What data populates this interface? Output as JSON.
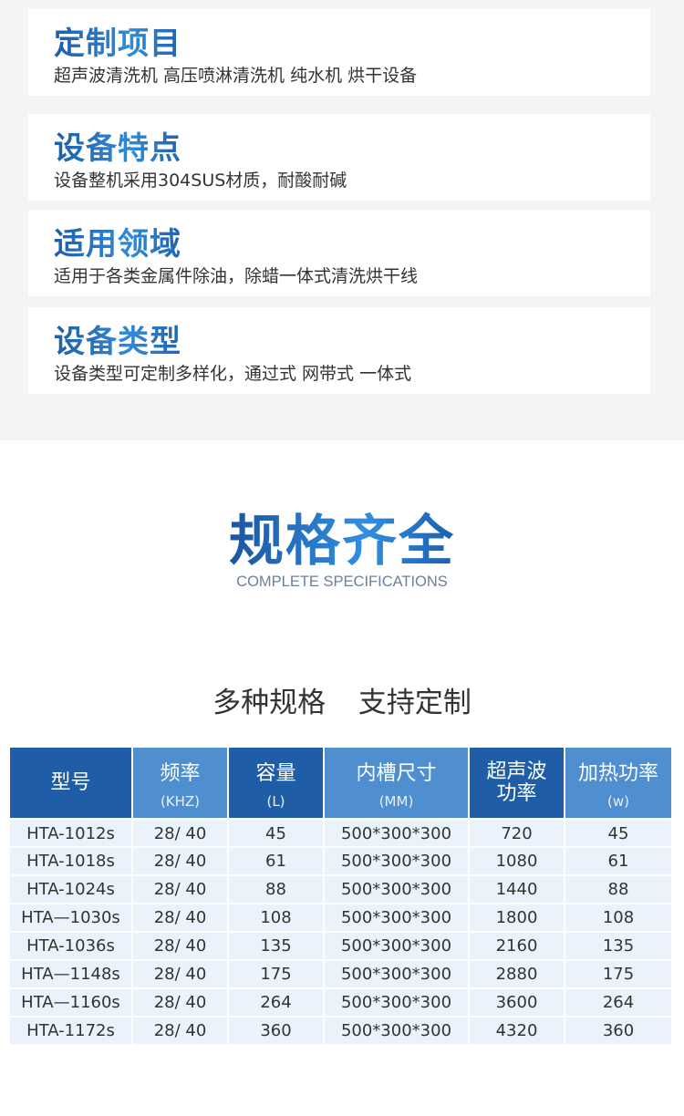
{
  "features": [
    {
      "title": "定制项目",
      "text": "超声波清洗机 高压喷淋清洗机 纯水机 烘干设备"
    },
    {
      "title": "设备特点",
      "text": "设备整机采用304SUS材质，耐酸耐碱"
    },
    {
      "title": "适用领域",
      "text": "适用于各类金属件除油，除蜡一体式清洗烘干线"
    },
    {
      "title": "设备类型",
      "text": "设备类型可定制多样化，通过式 网带式 一体式"
    }
  ],
  "spec_section": {
    "title": "规格齐全",
    "subtitle_en": "COMPLETE SPECIFICATIONS",
    "tagline": "多种规格  支持定制"
  },
  "colors": {
    "header_dark": "#1f5ea6",
    "header_light": "#4f8fd0",
    "row_bg": "#eaf3fb"
  },
  "table": {
    "headers": [
      {
        "label": "型号",
        "unit": ""
      },
      {
        "label": "频率",
        "unit": "(KHZ)"
      },
      {
        "label": "容量",
        "unit": "(L)"
      },
      {
        "label": "内槽尺寸",
        "unit": "(MM)"
      },
      {
        "label": "超声波功率",
        "unit": ""
      },
      {
        "label": "加热功率",
        "unit": "(w)"
      }
    ],
    "rows": [
      [
        "HTA-1012s",
        "28/ 40",
        "45",
        "500*300*300",
        "720",
        "45"
      ],
      [
        "HTA-1018s",
        "28/ 40",
        "61",
        "500*300*300",
        "1080",
        "61"
      ],
      [
        "HTA-1024s",
        "28/ 40",
        "88",
        "500*300*300",
        "1440",
        "88"
      ],
      [
        "HTA—1030s",
        "28/ 40",
        "108",
        "500*300*300",
        "1800",
        "108"
      ],
      [
        "HTA-1036s",
        "28/ 40",
        "135",
        "500*300*300",
        "2160",
        "135"
      ],
      [
        "HTA—1148s",
        "28/ 40",
        "175",
        "500*300*300",
        "2880",
        "175"
      ],
      [
        "HTA—1160s",
        "28/ 40",
        "264",
        "500*300*300",
        "3600",
        "264"
      ],
      [
        "HTA-1172s",
        "28/ 40",
        "360",
        "500*300*300",
        "4320",
        "360"
      ]
    ]
  }
}
